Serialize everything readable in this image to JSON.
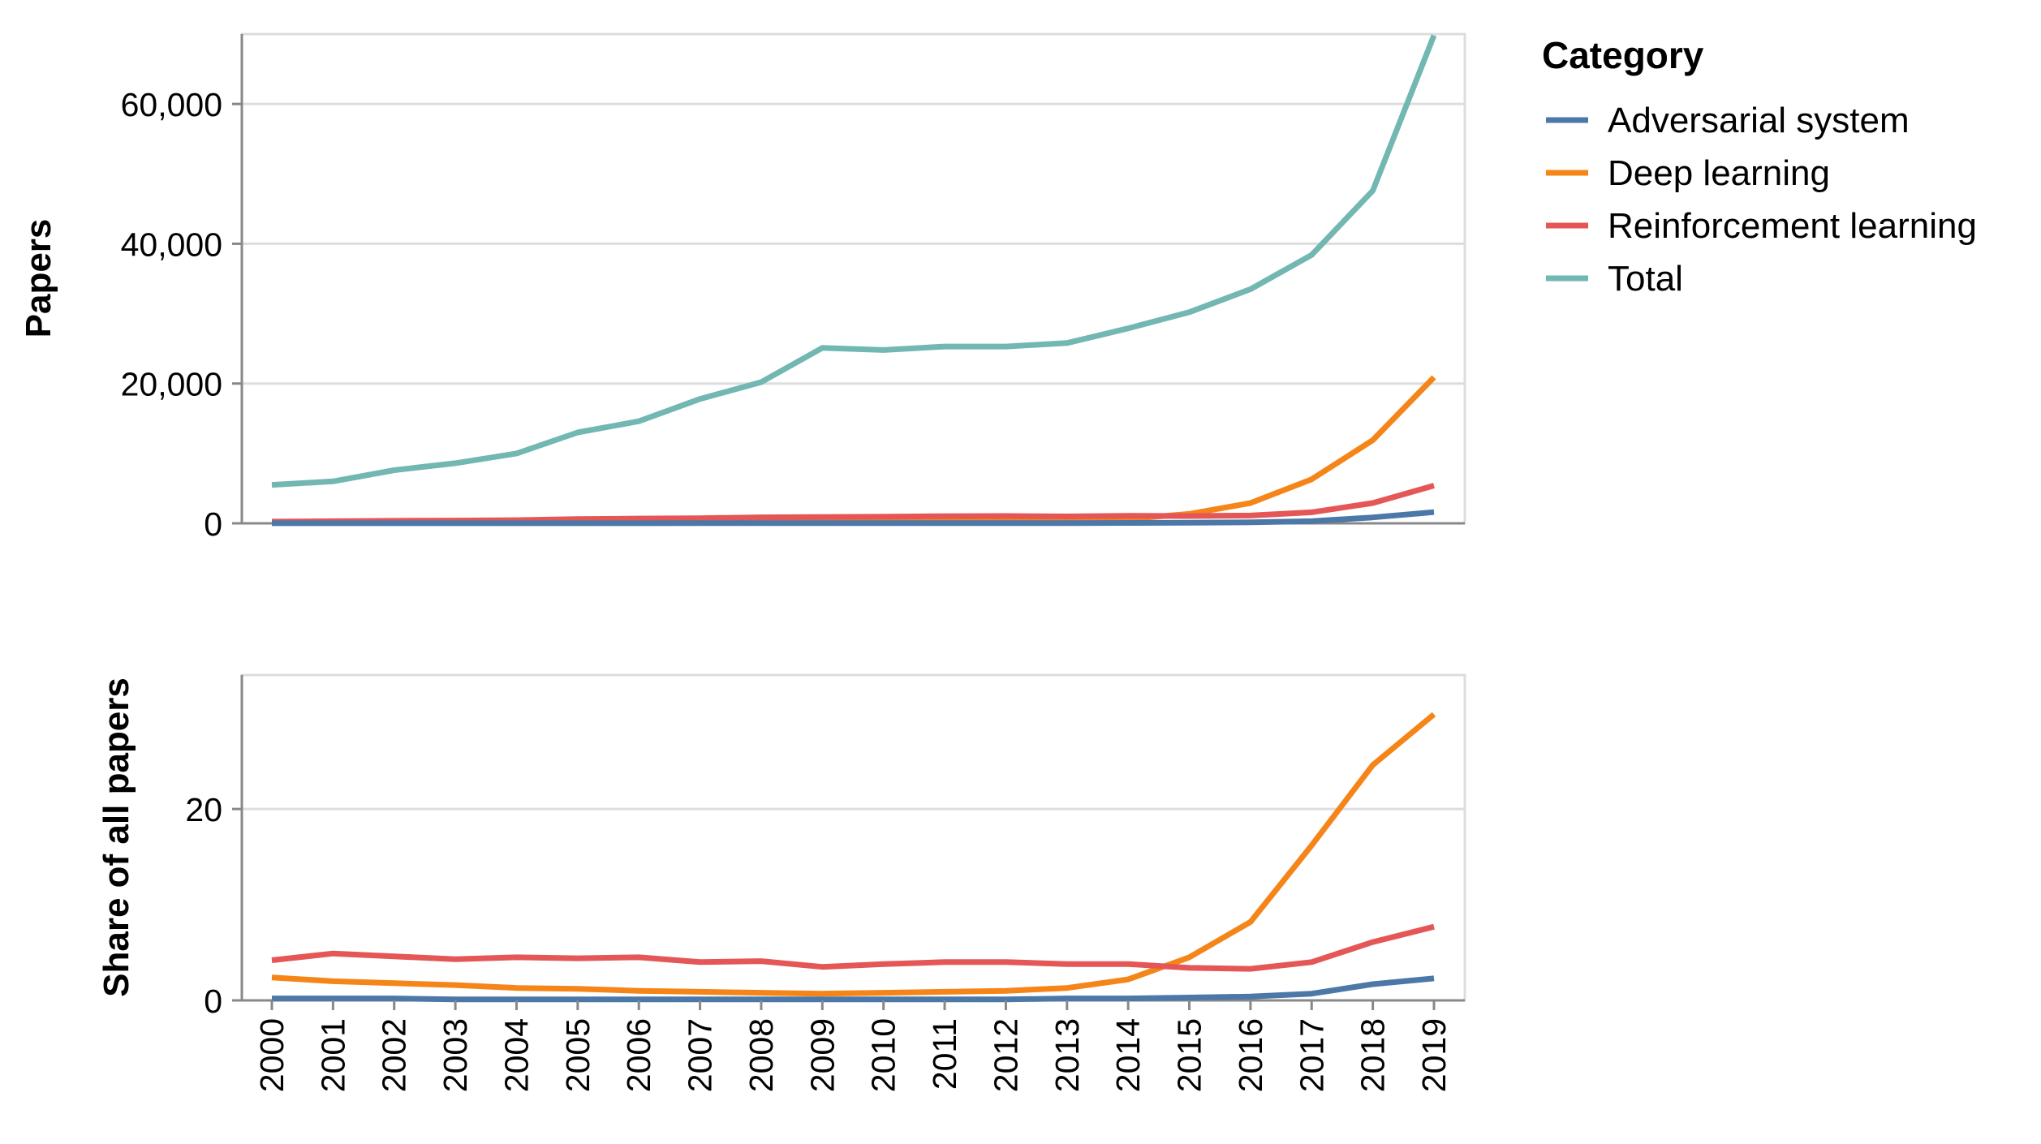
{
  "chart_data": {
    "type": "line",
    "legend": {
      "title": "Category",
      "position": "top-right"
    },
    "colors": {
      "Adversarial system": "#4c78a8",
      "Deep learning": "#f58518",
      "Reinforcement learning": "#e45756",
      "Total": "#72b7b2"
    },
    "x": [
      "2000",
      "2001",
      "2002",
      "2003",
      "2004",
      "2005",
      "2006",
      "2007",
      "2008",
      "2009",
      "2010",
      "2011",
      "2012",
      "2013",
      "2014",
      "2015",
      "2016",
      "2017",
      "2018",
      "2019"
    ],
    "panels": [
      {
        "ylabel": "Papers",
        "ylim": [
          0,
          70000
        ],
        "yticks": [
          0,
          20000,
          40000,
          60000
        ],
        "ytick_labels": [
          "0",
          "20,000",
          "40,000",
          "60,000"
        ],
        "grid": true,
        "series": [
          {
            "name": "Total",
            "values": [
              5500,
              6000,
              7600,
              8600,
              10000,
              13000,
              14600,
              17800,
              20200,
              25100,
              24800,
              25300,
              25300,
              25800,
              27900,
              30200,
              33500,
              38400,
              47600,
              69800
            ]
          },
          {
            "name": "Deep learning",
            "values": [
              130,
              120,
              140,
              140,
              130,
              160,
              150,
              170,
              160,
              170,
              200,
              230,
              250,
              340,
              620,
              1350,
              2900,
              6300,
              11900,
              20900
            ]
          },
          {
            "name": "Reinforcement learning",
            "values": [
              240,
              300,
              360,
              390,
              450,
              600,
              680,
              730,
              860,
              890,
              940,
              1020,
              1040,
              990,
              1080,
              1050,
              1120,
              1580,
              2900,
              5400
            ]
          },
          {
            "name": "Adversarial system",
            "values": [
              10,
              10,
              10,
              10,
              10,
              10,
              10,
              20,
              20,
              20,
              20,
              20,
              30,
              40,
              60,
              90,
              140,
              300,
              850,
              1600
            ]
          }
        ]
      },
      {
        "ylabel": "Share of all papers",
        "ylim": [
          0,
          34
        ],
        "yticks": [
          0,
          20
        ],
        "ytick_labels": [
          "0",
          "20"
        ],
        "grid": true,
        "series": [
          {
            "name": "Deep learning",
            "values": [
              2.4,
              2.0,
              1.8,
              1.6,
              1.3,
              1.2,
              1.0,
              0.9,
              0.8,
              0.7,
              0.8,
              0.9,
              1.0,
              1.3,
              2.2,
              4.5,
              8.2,
              16.2,
              24.6,
              29.9
            ]
          },
          {
            "name": "Reinforcement learning",
            "values": [
              4.2,
              4.9,
              4.6,
              4.3,
              4.5,
              4.4,
              4.5,
              4.0,
              4.1,
              3.5,
              3.8,
              4.0,
              4.0,
              3.8,
              3.8,
              3.4,
              3.3,
              4.0,
              6.1,
              7.7
            ]
          },
          {
            "name": "Adversarial system",
            "values": [
              0.2,
              0.2,
              0.2,
              0.1,
              0.1,
              0.1,
              0.1,
              0.1,
              0.1,
              0.1,
              0.1,
              0.1,
              0.1,
              0.2,
              0.2,
              0.3,
              0.4,
              0.7,
              1.7,
              2.3
            ]
          }
        ]
      }
    ]
  }
}
